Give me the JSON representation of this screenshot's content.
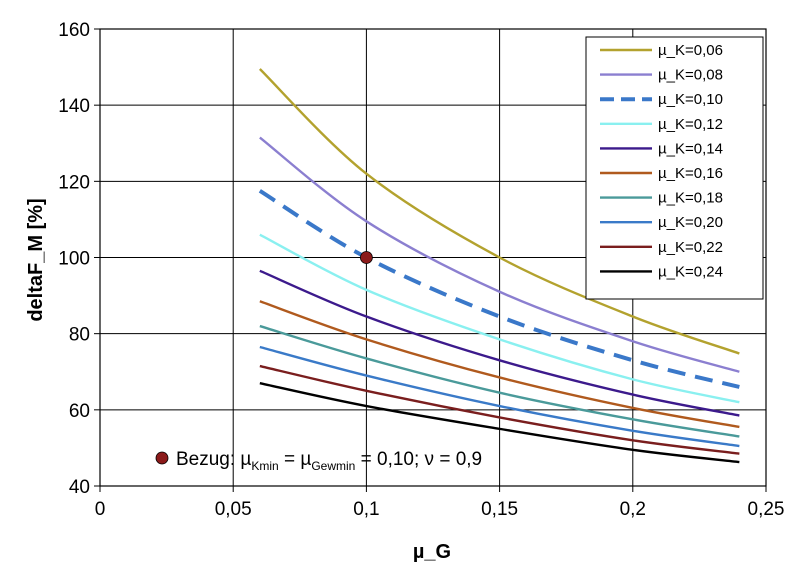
{
  "chart_data": {
    "type": "line",
    "xlabel": "µ_G",
    "ylabel": "deltaF_M [%]",
    "xlim": [
      0,
      0.25
    ],
    "ylim": [
      40,
      160
    ],
    "grid": true,
    "legend_position": "top-right",
    "x_ticks": [
      0,
      0.05,
      0.1,
      0.15,
      0.2,
      0.25
    ],
    "x_tick_labels": [
      "0",
      "0,05",
      "0,1",
      "0,15",
      "0,2",
      "0,25"
    ],
    "y_ticks": [
      40,
      60,
      80,
      100,
      120,
      140,
      160
    ],
    "y_tick_labels": [
      "40",
      "60",
      "80",
      "100",
      "120",
      "140",
      "160"
    ],
    "x": [
      0.06,
      0.1,
      0.15,
      0.2,
      0.24
    ],
    "series": [
      {
        "name": "µ_K=0,06",
        "color": "#b3a22e",
        "dashed": false,
        "values": [
          149.5,
          122,
          100,
          84.5,
          74.8
        ]
      },
      {
        "name": "µ_K=0,08",
        "color": "#8b7fd0",
        "dashed": false,
        "values": [
          131.5,
          109.5,
          91,
          78,
          70
        ]
      },
      {
        "name": "µ_K=0,10",
        "color": "#3a78c9",
        "dashed": true,
        "values": [
          117.5,
          100,
          84.5,
          73,
          66
        ]
      },
      {
        "name": "µ_K=0,12",
        "color": "#8af0f0",
        "dashed": false,
        "values": [
          106,
          91.5,
          78.5,
          68,
          62
        ]
      },
      {
        "name": "µ_K=0,14",
        "color": "#3c1a8c",
        "dashed": false,
        "values": [
          96.5,
          84.5,
          73,
          64,
          58.5
        ]
      },
      {
        "name": "µ_K=0,16",
        "color": "#b05a1e",
        "dashed": false,
        "values": [
          88.5,
          78.5,
          68.5,
          60.5,
          55.5
        ]
      },
      {
        "name": "µ_K=0,18",
        "color": "#4a9a9a",
        "dashed": false,
        "values": [
          82,
          73.5,
          64.5,
          57.5,
          53
        ]
      },
      {
        "name": "µ_K=0,20",
        "color": "#3a7ac8",
        "dashed": false,
        "values": [
          76.5,
          69,
          61,
          54.5,
          50.5
        ]
      },
      {
        "name": "µ_K=0,22",
        "color": "#7a1e1e",
        "dashed": false,
        "values": [
          71.5,
          65,
          58,
          52,
          48.5
        ]
      },
      {
        "name": "µ_K=0,24",
        "color": "#000000",
        "dashed": false,
        "values": [
          67,
          61,
          55,
          49.5,
          46.3
        ]
      }
    ],
    "reference_point": {
      "x": 0.1,
      "y": 100,
      "color": "#8b1a1a"
    },
    "annotation": {
      "prefix": "Bezug: µ",
      "sub1": "Kmin",
      "mid": " = µ",
      "sub2": "Gewmin",
      "suffix": " = 0,10; ν = 0,9",
      "marker_color": "#8b1a1a"
    }
  }
}
